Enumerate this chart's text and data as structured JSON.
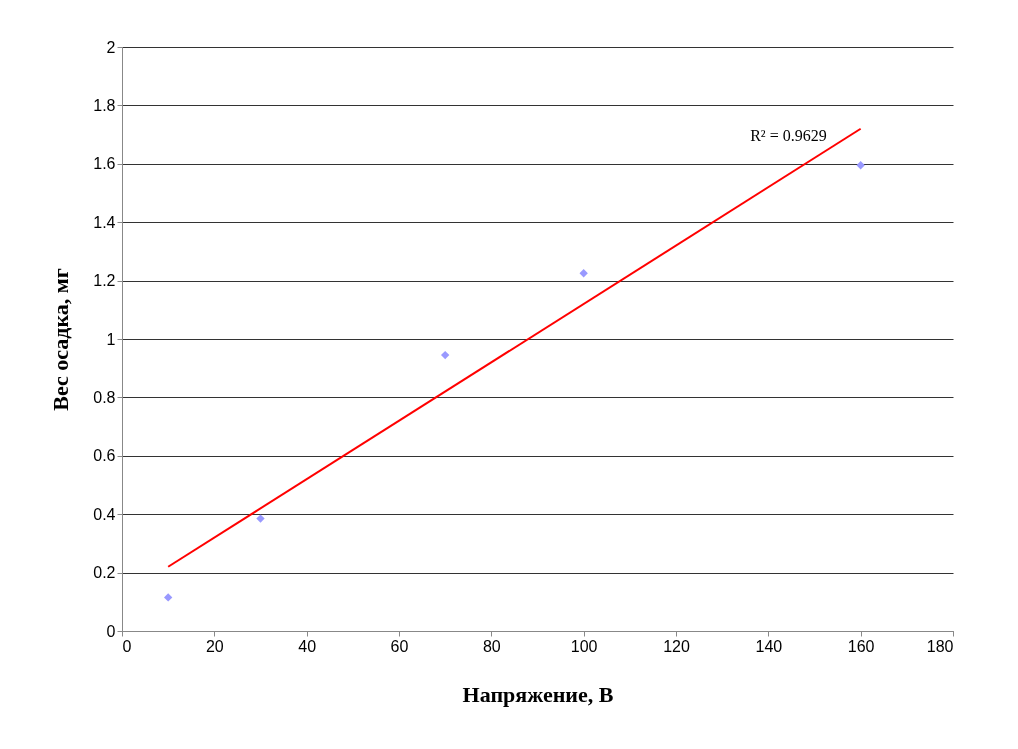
{
  "chart_data": {
    "type": "scatter",
    "xlabel": "Напряжение, В",
    "ylabel": "Вес осадка, мг",
    "xlim": [
      0,
      180
    ],
    "xticks": [
      0,
      20,
      40,
      60,
      80,
      100,
      120,
      140,
      160,
      180
    ],
    "ylim": [
      0,
      2
    ],
    "yticks": [
      0,
      0.2,
      0.4,
      0.6,
      0.8,
      1,
      1.2,
      1.4,
      1.6,
      1.8,
      2
    ],
    "grid": "y",
    "annotations": [
      "R² = 0.9629"
    ],
    "series": [
      {
        "type": "scatter",
        "color": "#9999ff",
        "marker": "diamond",
        "x": [
          10,
          30,
          70,
          100,
          160
        ],
        "values": [
          0.115,
          0.385,
          0.945,
          1.225,
          1.595
        ]
      },
      {
        "type": "line",
        "color": "#ff0000",
        "line_style": "solid",
        "x": [
          10,
          160
        ],
        "values": [
          0.22,
          1.72
        ]
      }
    ]
  }
}
